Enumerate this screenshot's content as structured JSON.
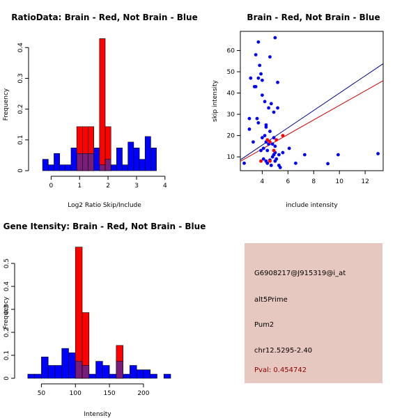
{
  "colors": {
    "brain": "#ff0000",
    "not_brain": "#0000ff",
    "overlap": "#7a1c7a",
    "fit_brain": "#cc0000",
    "fit_not_brain": "#000080",
    "panel_bg": "#e6c8c0",
    "pval": "#8b0000"
  },
  "chart_data": [
    {
      "id": "ratio",
      "type": "bar",
      "title": "RatioData: Brain - Red, Not Brain - Blue",
      "xlabel": "Log2 Ratio Skip/Include",
      "ylabel": "Frequency",
      "xlim": [
        -0.45,
        4.2
      ],
      "ylim": [
        0,
        0.43
      ],
      "xticks": [
        0,
        1,
        2,
        3,
        4
      ],
      "yticks": [
        0,
        0.1,
        0.2,
        0.3,
        0.4
      ],
      "bin_start": -0.3,
      "bin_width": 0.2,
      "series": [
        {
          "name": "Not Brain",
          "values": [
            0.037,
            0.019,
            0.056,
            0.019,
            0.019,
            0.074,
            0.056,
            0.056,
            0.056,
            0.074,
            0.019,
            0.037,
            0.019,
            0.074,
            0.019,
            0.093,
            0.074,
            0.037,
            0.111,
            0.074
          ]
        },
        {
          "name": "Brain",
          "values": [
            0,
            0,
            0,
            0,
            0,
            0,
            0.143,
            0.143,
            0.143,
            0,
            0.429,
            0.143,
            0,
            0,
            0,
            0,
            0,
            0,
            0,
            0
          ]
        }
      ]
    },
    {
      "id": "scatter",
      "type": "scatter",
      "title": "Brain - Red, Not Brain - Blue",
      "xlabel": "include intensity",
      "ylabel": "skip intensity",
      "xlim": [
        2.3,
        13.4
      ],
      "ylim": [
        3.5,
        69
      ],
      "xticks": [
        4,
        6,
        8,
        10,
        12
      ],
      "yticks": [
        10,
        20,
        30,
        40,
        50,
        60
      ],
      "series": [
        {
          "name": "Not Brain",
          "points": [
            [
              5.0,
              66
            ],
            [
              3.7,
              64
            ],
            [
              3.5,
              58
            ],
            [
              4.6,
              57
            ],
            [
              3.8,
              53
            ],
            [
              3.9,
              49
            ],
            [
              3.1,
              47
            ],
            [
              3.7,
              47
            ],
            [
              4.0,
              46
            ],
            [
              5.2,
              45
            ],
            [
              3.4,
              43
            ],
            [
              3.5,
              43
            ],
            [
              4.0,
              39
            ],
            [
              4.2,
              36
            ],
            [
              4.7,
              35
            ],
            [
              4.5,
              33
            ],
            [
              5.2,
              33
            ],
            [
              4.9,
              31
            ],
            [
              3.6,
              28
            ],
            [
              3.0,
              28
            ],
            [
              3.7,
              26
            ],
            [
              4.3,
              25
            ],
            [
              4.3,
              24
            ],
            [
              3.0,
              23
            ],
            [
              4.6,
              22
            ],
            [
              4.2,
              20
            ],
            [
              4.0,
              19
            ],
            [
              4.9,
              19
            ],
            [
              3.3,
              17
            ],
            [
              4.3,
              17
            ],
            [
              4.5,
              16
            ],
            [
              4.8,
              16
            ],
            [
              5.0,
              15
            ],
            [
              4.1,
              14
            ],
            [
              3.9,
              13
            ],
            [
              6.1,
              14
            ],
            [
              4.4,
              13
            ],
            [
              5.0,
              12
            ],
            [
              4.9,
              11
            ],
            [
              5.3,
              11
            ],
            [
              5.6,
              12
            ],
            [
              7.3,
              11
            ],
            [
              9.9,
              11
            ],
            [
              13.0,
              11.5
            ],
            [
              4.1,
              9
            ],
            [
              4.6,
              8.5
            ],
            [
              4.8,
              10
            ],
            [
              5.1,
              9
            ],
            [
              4.3,
              8
            ],
            [
              5.0,
              8
            ],
            [
              2.6,
              7
            ],
            [
              4.4,
              7
            ],
            [
              6.6,
              7
            ],
            [
              9.1,
              6.8
            ],
            [
              4.7,
              6
            ],
            [
              5.3,
              6
            ],
            [
              5.4,
              5
            ]
          ]
        },
        {
          "name": "Brain",
          "points": [
            [
              4.4,
              18
            ],
            [
              4.6,
              17
            ],
            [
              5.1,
              18
            ],
            [
              5.6,
              20
            ],
            [
              4.9,
              13
            ],
            [
              3.9,
              8
            ],
            [
              4.6,
              8
            ]
          ]
        }
      ],
      "fits": [
        {
          "name": "Not Brain",
          "x": [
            2.3,
            13.4
          ],
          "y": [
            8.6,
            53.8
          ]
        },
        {
          "name": "Brain",
          "x": [
            2.3,
            13.4
          ],
          "y": [
            7.9,
            45.8
          ]
        }
      ]
    },
    {
      "id": "gene",
      "type": "bar",
      "title": "Gene Itensity: Brain - Red, Not Brain - Blue",
      "xlabel": "Intensity",
      "ylabel": "Frequency",
      "xlim": [
        25,
        240
      ],
      "ylim": [
        0,
        0.57
      ],
      "xticks": [
        50,
        100,
        150,
        200
      ],
      "yticks": [
        0,
        0.1,
        0.2,
        0.3,
        0.4,
        0.5
      ],
      "bin_start": 30,
      "bin_width": 10,
      "series": [
        {
          "name": "Not Brain",
          "values": [
            0.018,
            0.018,
            0.093,
            0.056,
            0.056,
            0.13,
            0.111,
            0.074,
            0.056,
            0.018,
            0.074,
            0.056,
            0.018,
            0.074,
            0.018,
            0.056,
            0.037,
            0.037,
            0.018,
            0.0,
            0.018
          ]
        },
        {
          "name": "Brain",
          "values": [
            0,
            0,
            0,
            0,
            0,
            0,
            0,
            0.571,
            0.286,
            0,
            0,
            0,
            0,
            0.143,
            0,
            0,
            0,
            0,
            0,
            0,
            0
          ]
        }
      ]
    }
  ],
  "info_panel": {
    "probe": "G6908217@J915319@i_at",
    "event": "alt5Prime",
    "gene": "Pum2",
    "location": "chr12.5295-2.40",
    "pval": "Pval: 0.454742"
  }
}
